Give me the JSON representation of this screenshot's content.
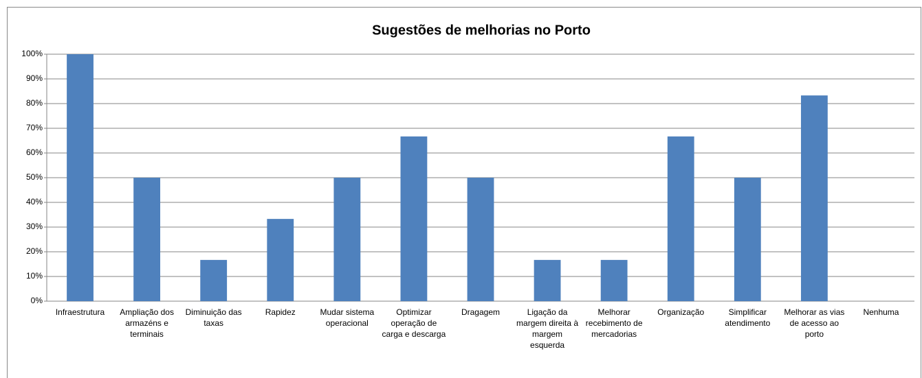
{
  "chart_data": {
    "type": "bar",
    "title": "Sugestões de melhorias no Porto",
    "categories": [
      "Infraestrutura",
      "Ampliação dos armazéns e terminais",
      "Diminuição das taxas",
      "Rapidez",
      "Mudar sistema operacional",
      "Optimizar operação de carga e descarga",
      "Dragagem",
      "Ligação da margem direita à margem esquerda",
      "Melhorar recebimento de mercadorias",
      "Organização",
      "Simplificar atendimento",
      "Melhorar as vias de acesso ao porto",
      "Nenhuma"
    ],
    "values": [
      100,
      50,
      16.7,
      33.3,
      50,
      66.7,
      50,
      16.7,
      16.7,
      66.7,
      50,
      83.3,
      0
    ],
    "color": "#4f81bd",
    "ylim": [
      0,
      100
    ],
    "yticks": [
      {
        "value": 0,
        "label": "0%"
      },
      {
        "value": 10,
        "label": "10%"
      },
      {
        "value": 20,
        "label": "20%"
      },
      {
        "value": 30,
        "label": "30%"
      },
      {
        "value": 40,
        "label": "40%"
      },
      {
        "value": 50,
        "label": "50%"
      },
      {
        "value": 60,
        "label": "60%"
      },
      {
        "value": 70,
        "label": "70%"
      },
      {
        "value": 80,
        "label": "80%"
      },
      {
        "value": 90,
        "label": "90%"
      },
      {
        "value": 100,
        "label": "100%"
      }
    ],
    "grid": true
  }
}
